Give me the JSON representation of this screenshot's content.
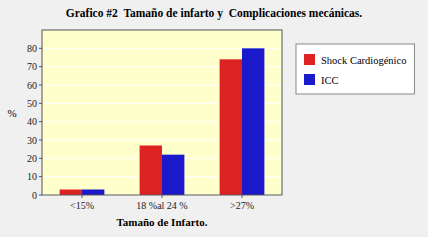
{
  "chart_data": {
    "type": "bar",
    "title": "Grafico #2  Tamaño de infarto y  Complicaciones mecánicas.",
    "categories": [
      "<15%",
      "18 %al 24 %",
      ">27%"
    ],
    "series": [
      {
        "name": "Shock Cardiogénico",
        "color": "#dd2222",
        "values": [
          3,
          27,
          74
        ]
      },
      {
        "name": "ICC",
        "color": "#1a1acc",
        "values": [
          3,
          22,
          80
        ]
      }
    ],
    "xlabel": "Tamaño de Infarto.",
    "ylabel": "%",
    "ylim": [
      0,
      90
    ],
    "yticks": [
      0,
      10,
      20,
      30,
      40,
      50,
      60,
      70,
      80
    ],
    "grid": true,
    "legend": "right"
  }
}
